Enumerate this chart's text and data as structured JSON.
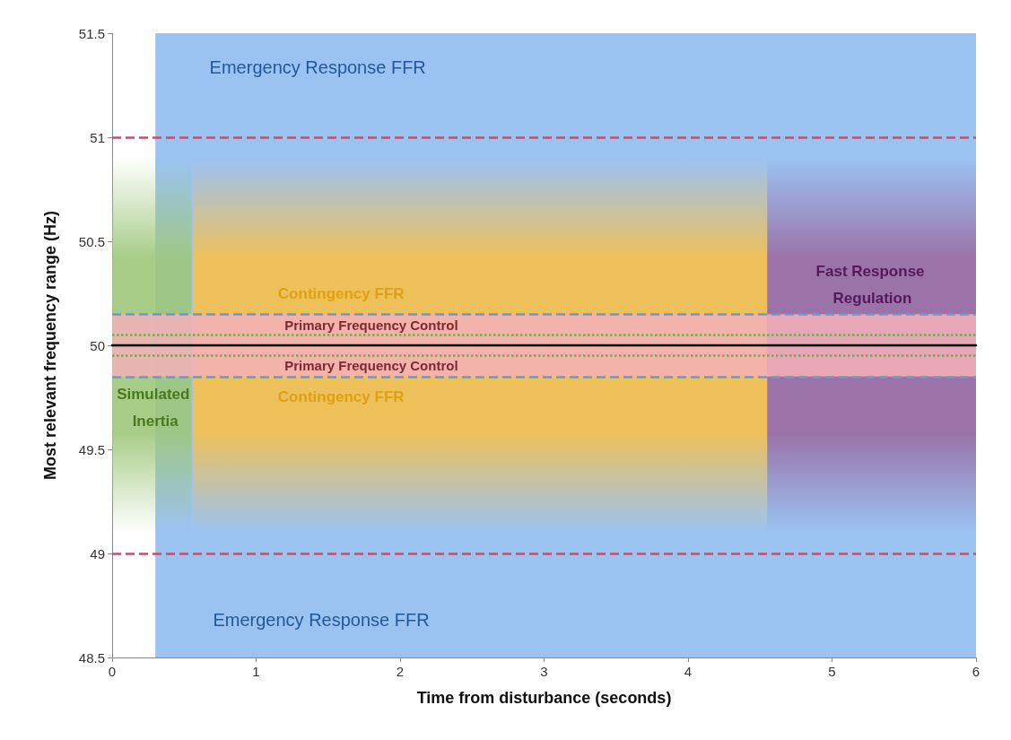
{
  "chart_data": {
    "type": "line",
    "xlabel": "Time from disturbance (seconds)",
    "ylabel": "Most relevant frequency range (Hz)",
    "xlim": [
      0,
      6
    ],
    "xticks": [
      0,
      1,
      2,
      3,
      4,
      5,
      6
    ],
    "ylim": [
      48.5,
      51.5
    ],
    "yticks": [
      48.5,
      49,
      49.5,
      50,
      50.5,
      51,
      51.5
    ],
    "marker": "none",
    "line_style": "solid",
    "series": [
      {
        "color": "#000000",
        "x": [
          0,
          6
        ],
        "values": [
          50,
          50
        ]
      }
    ],
    "bands": [
      {
        "axis": "x",
        "from": 0.3,
        "to": 6,
        "color": "#8ab8f0"
      },
      {
        "axis": "x",
        "from": 0.56,
        "to": 4.55,
        "color": "#f7c04a"
      },
      {
        "axis": "x",
        "from": 4.55,
        "to": 6,
        "color": "#9a6aa0"
      },
      {
        "axis": "x",
        "from": 0,
        "to": 0.55,
        "color": "#9ec77a"
      },
      {
        "axis": "y",
        "from": 49.85,
        "to": 50.15,
        "color": "#f4b0b8"
      }
    ],
    "ref_lines": [
      {
        "axis": "y",
        "value": 51,
        "color": "#c05070",
        "line_style": "dashed"
      },
      {
        "axis": "y",
        "value": 49,
        "color": "#c05070",
        "line_style": "dashed"
      },
      {
        "axis": "y",
        "value": 50.15,
        "color": "#6a9ac8",
        "line_style": "dashed"
      },
      {
        "axis": "y",
        "value": 49.85,
        "color": "#6a9ac8",
        "line_style": "dashed"
      },
      {
        "axis": "y",
        "value": 50.05,
        "color": "#6ab04a",
        "line_style": "dotted"
      },
      {
        "axis": "y",
        "value": 49.95,
        "color": "#6ab04a",
        "line_style": "dotted"
      }
    ],
    "annotations": [
      "Emergency Response FFR",
      "Emergency Response FFR",
      "Contingency FFR",
      "Contingency FFR",
      "Primary Frequency Control",
      "Primary Frequency Control",
      "Fast Response Regulation",
      "Simulated Inertia"
    ]
  }
}
